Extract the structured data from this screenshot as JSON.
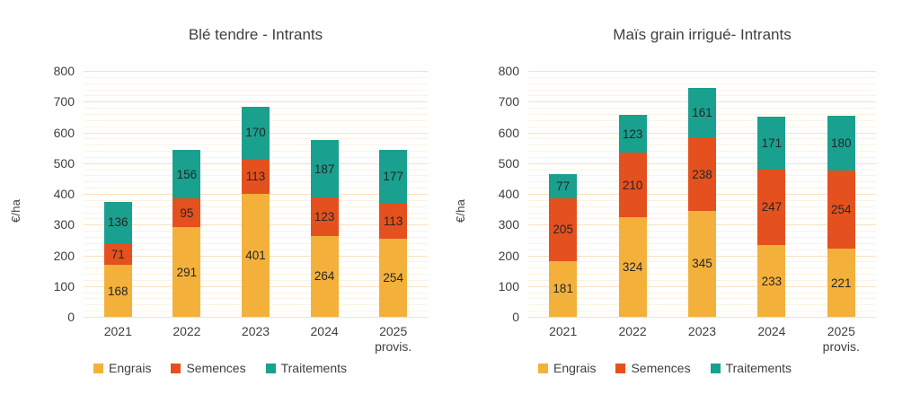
{
  "palette": {
    "background": "#FFFFFF",
    "engrais": "#F3B13C",
    "semences": "#E4511E",
    "traitements": "#1AA08E",
    "gridline_major": "#F8E1C0",
    "gridline_minor": "#FCF2E2",
    "axis_text": "#3F3F3F",
    "bar_label_text": "#262626"
  },
  "chart_data": [
    {
      "type": "bar",
      "stacked": true,
      "title": "Blé tendre - Intrants",
      "ylabel": "€/ha",
      "ylim": [
        0,
        800
      ],
      "ytick_step": 100,
      "grid_minor_step": 20,
      "grid": "on",
      "legend_position": "bottom",
      "categories": [
        {
          "label": "2021",
          "sublabel": ""
        },
        {
          "label": "2022",
          "sublabel": ""
        },
        {
          "label": "2023",
          "sublabel": ""
        },
        {
          "label": "2024",
          "sublabel": ""
        },
        {
          "label": "2025",
          "sublabel": "provis."
        }
      ],
      "series": [
        {
          "name": "Engrais",
          "color_key": "engrais",
          "values": [
            168,
            291,
            401,
            264,
            254
          ]
        },
        {
          "name": "Semences",
          "color_key": "semences",
          "values": [
            71,
            95,
            113,
            123,
            113
          ]
        },
        {
          "name": "Traitements",
          "color_key": "traitements",
          "values": [
            136,
            156,
            170,
            187,
            177
          ]
        }
      ]
    },
    {
      "type": "bar",
      "stacked": true,
      "title": "Maïs grain irrigué- Intrants",
      "ylabel": "€/ha",
      "ylim": [
        0,
        800
      ],
      "ytick_step": 100,
      "grid_minor_step": 20,
      "grid": "on",
      "legend_position": "bottom",
      "categories": [
        {
          "label": "2021",
          "sublabel": ""
        },
        {
          "label": "2022",
          "sublabel": ""
        },
        {
          "label": "2023",
          "sublabel": ""
        },
        {
          "label": "2024",
          "sublabel": ""
        },
        {
          "label": "2025",
          "sublabel": "provis."
        }
      ],
      "series": [
        {
          "name": "Engrais",
          "color_key": "engrais",
          "values": [
            181,
            324,
            345,
            233,
            221
          ]
        },
        {
          "name": "Semences",
          "color_key": "semences",
          "values": [
            205,
            210,
            238,
            247,
            254
          ]
        },
        {
          "name": "Traitements",
          "color_key": "traitements",
          "values": [
            77,
            123,
            161,
            171,
            180
          ]
        }
      ]
    }
  ]
}
